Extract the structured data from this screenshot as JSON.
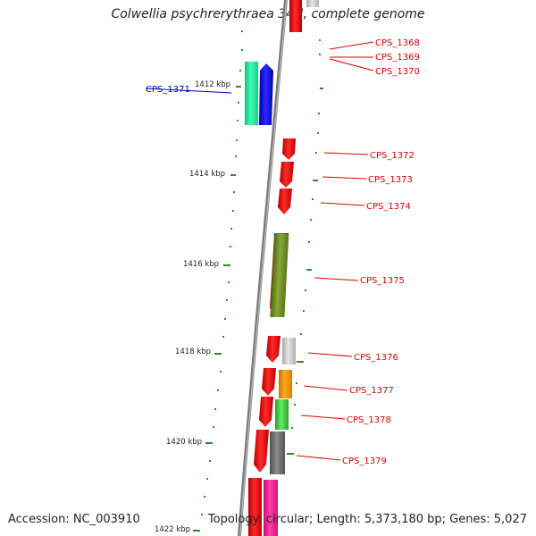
{
  "title": "Colwellia psychrerythraea 34H, complete genome",
  "footer": {
    "accession": "Accession: NC_003910",
    "summary": "Topology: circular; Length: 5,373,180 bp; Genes: 5,027"
  },
  "colors": {
    "backbone": "#8a8a8a",
    "tick": "#2e8b2e",
    "label_red": "#e00000",
    "label_blue": "#0000cc"
  },
  "scale_labels": [
    "1412 kbp",
    "1414 kbp",
    "1416 kbp",
    "1418 kbp",
    "1420 kbp",
    "1422 kbp"
  ],
  "genes": [
    {
      "label": "CPS_1368",
      "color": "#ff0000",
      "label_color": "red"
    },
    {
      "label": "CPS_1369",
      "color": "#ff0000",
      "label_color": "red"
    },
    {
      "label": "CPS_1370",
      "color": "#ff0000",
      "label_color": "red"
    },
    {
      "label": "CPS_1371",
      "color": "#0000ff",
      "label_color": "blue"
    },
    {
      "label": "CPS_1372",
      "color": "#ff0000",
      "label_color": "red"
    },
    {
      "label": "CPS_1373",
      "color": "#ff0000",
      "label_color": "red"
    },
    {
      "label": "CPS_1374",
      "color": "#ff0000",
      "label_color": "red"
    },
    {
      "label": "CPS_1375",
      "color": "#6b8e23",
      "label_color": "red"
    },
    {
      "label": "CPS_1376",
      "color": "#c8c8c8",
      "label_color": "red"
    },
    {
      "label": "CPS_1377",
      "color": "#ff9900",
      "label_color": "red"
    },
    {
      "label": "CPS_1378",
      "color": "#33cc33",
      "label_color": "red"
    },
    {
      "label": "CPS_1379",
      "color": "#707070",
      "label_color": "red"
    }
  ]
}
